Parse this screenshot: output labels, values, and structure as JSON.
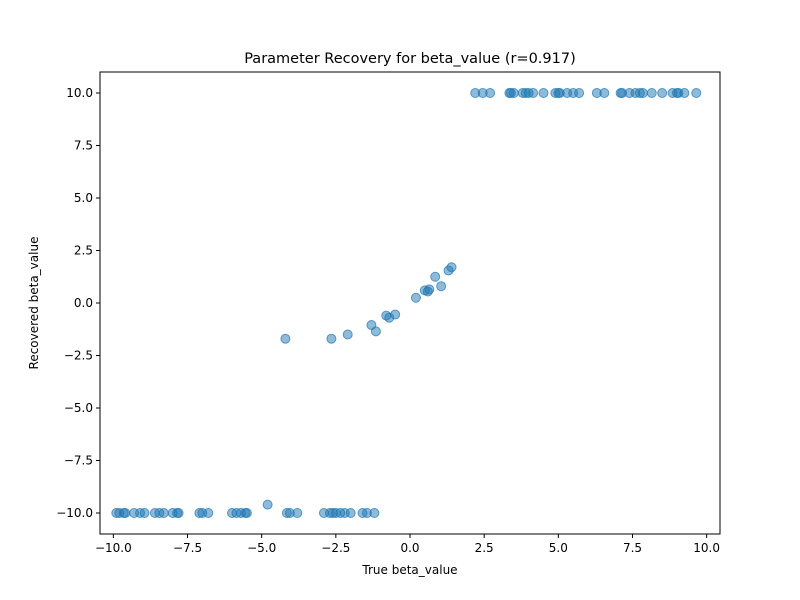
{
  "chart_data": {
    "type": "scatter",
    "title": "Parameter Recovery for beta_value (r=0.917)",
    "xlabel": "True beta_value",
    "ylabel": "Recovered beta_value",
    "xlim": [
      -10.45,
      10.45
    ],
    "ylim": [
      -11.0,
      11.0
    ],
    "xticks": [
      -10.0,
      -7.5,
      -5.0,
      -2.5,
      0.0,
      2.5,
      5.0,
      7.5,
      10.0
    ],
    "yticks": [
      -10.0,
      -7.5,
      -5.0,
      -2.5,
      0.0,
      2.5,
      5.0,
      7.5,
      10.0
    ],
    "xtick_labels": [
      "−10.0",
      "−7.5",
      "−5.0",
      "−2.5",
      "0.0",
      "2.5",
      "5.0",
      "7.5",
      "10.0"
    ],
    "ytick_labels": [
      "−10.0",
      "−7.5",
      "−5.0",
      "−2.5",
      "0.0",
      "2.5",
      "5.0",
      "7.5",
      "10.0"
    ],
    "grid": false,
    "marker_color": "#1f77b4",
    "marker_alpha": 0.5,
    "points": [
      [
        -9.9,
        -10
      ],
      [
        -9.8,
        -10
      ],
      [
        -9.65,
        -10
      ],
      [
        -9.6,
        -10
      ],
      [
        -9.3,
        -10
      ],
      [
        -9.1,
        -10
      ],
      [
        -8.95,
        -10
      ],
      [
        -8.6,
        -10
      ],
      [
        -8.45,
        -10
      ],
      [
        -8.3,
        -10
      ],
      [
        -8.0,
        -10
      ],
      [
        -7.85,
        -10
      ],
      [
        -7.8,
        -10
      ],
      [
        -7.1,
        -10
      ],
      [
        -7.0,
        -10
      ],
      [
        -6.8,
        -10
      ],
      [
        -6.0,
        -10
      ],
      [
        -5.85,
        -10
      ],
      [
        -5.7,
        -10
      ],
      [
        -5.55,
        -10
      ],
      [
        -5.5,
        -10
      ],
      [
        -4.15,
        -10
      ],
      [
        -4.05,
        -10
      ],
      [
        -3.8,
        -10
      ],
      [
        -2.9,
        -10
      ],
      [
        -2.7,
        -10
      ],
      [
        -2.6,
        -10
      ],
      [
        -2.5,
        -10
      ],
      [
        -2.35,
        -10
      ],
      [
        -2.2,
        -10
      ],
      [
        -2.0,
        -10
      ],
      [
        -1.6,
        -10
      ],
      [
        -1.45,
        -10
      ],
      [
        -1.2,
        -10
      ],
      [
        -4.8,
        -9.6
      ],
      [
        -4.2,
        -1.7
      ],
      [
        -2.65,
        -1.7
      ],
      [
        -2.1,
        -1.5
      ],
      [
        -1.3,
        -1.05
      ],
      [
        -1.15,
        -1.35
      ],
      [
        -0.8,
        -0.6
      ],
      [
        -0.7,
        -0.7
      ],
      [
        -0.5,
        -0.55
      ],
      [
        0.2,
        0.25
      ],
      [
        0.5,
        0.6
      ],
      [
        0.6,
        0.55
      ],
      [
        0.65,
        0.65
      ],
      [
        0.85,
        1.25
      ],
      [
        1.05,
        0.8
      ],
      [
        1.3,
        1.55
      ],
      [
        1.4,
        1.7
      ],
      [
        2.2,
        10
      ],
      [
        2.45,
        10
      ],
      [
        2.7,
        10
      ],
      [
        3.35,
        10
      ],
      [
        3.4,
        10
      ],
      [
        3.5,
        10
      ],
      [
        3.8,
        10
      ],
      [
        3.9,
        10
      ],
      [
        4.0,
        10
      ],
      [
        4.15,
        10
      ],
      [
        4.5,
        10
      ],
      [
        4.9,
        10
      ],
      [
        5.0,
        10
      ],
      [
        5.05,
        10
      ],
      [
        5.3,
        10
      ],
      [
        5.5,
        10
      ],
      [
        5.7,
        10
      ],
      [
        6.3,
        10
      ],
      [
        6.55,
        10
      ],
      [
        7.1,
        10
      ],
      [
        7.15,
        10
      ],
      [
        7.4,
        10
      ],
      [
        7.6,
        10
      ],
      [
        7.75,
        10
      ],
      [
        7.85,
        10
      ],
      [
        8.15,
        10
      ],
      [
        8.5,
        10
      ],
      [
        8.85,
        10
      ],
      [
        9.0,
        10
      ],
      [
        9.05,
        10
      ],
      [
        9.25,
        10
      ],
      [
        9.65,
        10
      ]
    ]
  }
}
